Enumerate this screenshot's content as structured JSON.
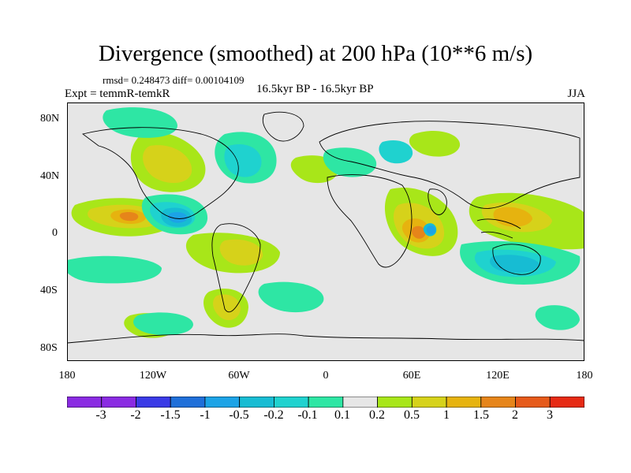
{
  "title": "Divergence (smoothed) at 200 hPa (10**6 m/s)",
  "stats_text": "rmsd= 0.248473 diff= 0.00104109",
  "expt_text": "Expt = temmR-temkR",
  "period_text": "16.5kyr BP - 16.5kyr BP",
  "season": "JJA",
  "lat_labels": [
    "80N",
    "40N",
    "0",
    "40S",
    "80S"
  ],
  "lon_labels": [
    "180",
    "120W",
    "60W",
    "0",
    "60E",
    "120E",
    "180"
  ],
  "colorbar": {
    "labels": [
      "-3",
      "-2",
      "-1.5",
      "-1",
      "-0.5",
      "-0.2",
      "-0.1",
      "0.1",
      "0.2",
      "0.5",
      "1",
      "1.5",
      "2",
      "3"
    ],
    "colors": [
      "#8a2be2",
      "#3a3ae6",
      "#1f6fd9",
      "#1ca3e6",
      "#17bcd3",
      "#1fd2cf",
      "#2ee6a4",
      "#e6e6e6",
      "#a8e619",
      "#d6d21a",
      "#e6b30f",
      "#e6851a",
      "#e65a1a",
      "#e62a14"
    ]
  },
  "colors": {
    "neutral": "#e6e6e6",
    "pos_low": "#a8e619",
    "pos_mid": "#d6d21a",
    "pos_high": "#e6b30f",
    "pos_top": "#e6851a",
    "neg_low": "#2ee6a4",
    "neg_mid": "#1fd2cf",
    "neg_high": "#17bcd3",
    "neg_top": "#1ca3e6"
  }
}
